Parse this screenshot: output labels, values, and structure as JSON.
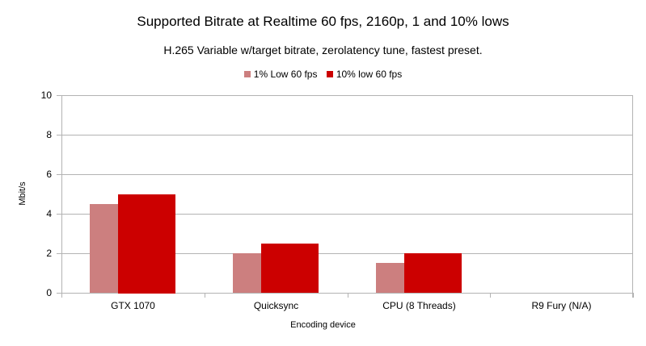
{
  "chart_data": {
    "type": "bar",
    "title": "Supported Bitrate at Realtime 60 fps, 2160p, 1 and 10% lows",
    "subtitle": "H.265 Variable w/target bitrate, zerolatency tune, fastest preset.",
    "xlabel": "Encoding device",
    "ylabel": "Mbit/s",
    "ylim": [
      0,
      10
    ],
    "yticks": [
      0,
      2,
      4,
      6,
      8,
      10
    ],
    "grid": true,
    "legend_position": "top",
    "categories": [
      "GTX 1070",
      "Quicksync",
      "CPU (8 Threads)",
      "R9 Fury (N/A)"
    ],
    "series": [
      {
        "name": "1% Low 60 fps",
        "color": "#cc7f7f",
        "values": [
          4.5,
          2.0,
          1.5,
          0
        ]
      },
      {
        "name": "10% low 60 fps",
        "color": "#cc0000",
        "values": [
          5.0,
          2.5,
          2.0,
          0
        ]
      }
    ]
  }
}
